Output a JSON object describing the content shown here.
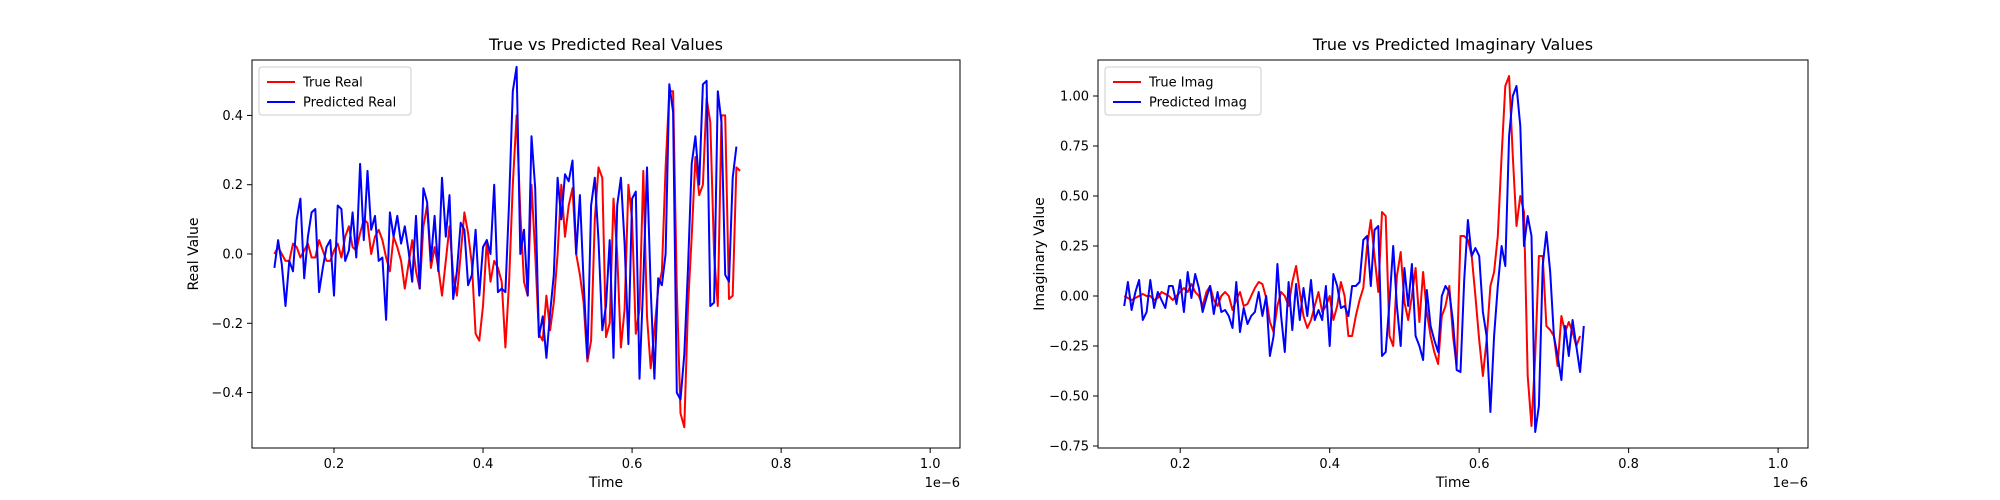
{
  "chart_data": [
    {
      "type": "line",
      "title": "True vs Predicted Real Values",
      "xlabel": "Time",
      "ylabel": "Real Value",
      "x_offset_text": "1e−6",
      "xlim": [
        0.09,
        1.04
      ],
      "ylim": [
        -0.56,
        0.56
      ],
      "xticks": [
        0.2,
        0.4,
        0.6,
        0.8,
        1.0
      ],
      "xtick_labels": [
        "0.2",
        "0.4",
        "0.6",
        "0.8",
        "1.0"
      ],
      "yticks": [
        -0.4,
        -0.2,
        0.0,
        0.2,
        0.4
      ],
      "ytick_labels": [
        "−0.4",
        "−0.2",
        "0.0",
        "0.2",
        "0.4"
      ],
      "grid": false,
      "legend_position": "upper-left",
      "x_start": 0.12,
      "x_step": 0.005,
      "series": [
        {
          "name": "True Real",
          "color": "#ff0000",
          "values": [
            0.0,
            0.02,
            0.0,
            -0.02,
            -0.02,
            0.03,
            0.02,
            -0.01,
            0.01,
            0.03,
            -0.01,
            -0.01,
            0.04,
            0.01,
            -0.02,
            -0.02,
            0.01,
            0.03,
            -0.01,
            0.05,
            0.08,
            0.02,
            0.01,
            0.06,
            0.1,
            0.09,
            0.0,
            0.05,
            0.07,
            0.04,
            -0.01,
            -0.05,
            0.05,
            0.02,
            -0.02,
            -0.1,
            -0.03,
            0.04,
            -0.05,
            -0.1,
            0.08,
            0.14,
            -0.04,
            0.02,
            -0.04,
            -0.12,
            -0.02,
            0.08,
            -0.06,
            -0.12,
            0.0,
            0.12,
            0.06,
            -0.03,
            -0.23,
            -0.25,
            -0.15,
            0.04,
            -0.08,
            -0.02,
            -0.04,
            -0.08,
            -0.27,
            -0.08,
            0.2,
            0.4,
            0.12,
            -0.08,
            -0.12,
            0.2,
            0.0,
            -0.23,
            -0.25,
            -0.12,
            -0.22,
            -0.14,
            0.0,
            0.2,
            0.05,
            0.14,
            0.19,
            0.0,
            -0.06,
            -0.14,
            -0.31,
            -0.25,
            0.1,
            0.25,
            0.22,
            -0.24,
            -0.2,
            0.16,
            0.0,
            -0.27,
            -0.16,
            0.2,
            0.1,
            -0.23,
            -0.16,
            0.24,
            -0.18,
            -0.33,
            -0.22,
            -0.1,
            -0.05,
            0.25,
            0.47,
            0.47,
            -0.1,
            -0.46,
            -0.5,
            -0.15,
            0.05,
            0.28,
            0.17,
            0.2,
            0.45,
            0.38,
            0.0,
            -0.15,
            0.4,
            0.4,
            -0.13,
            -0.12,
            0.25,
            0.24
          ]
        },
        {
          "name": "Predicted Real",
          "color": "#0000ff",
          "values": [
            -0.04,
            0.04,
            -0.03,
            -0.15,
            -0.02,
            -0.05,
            0.1,
            0.16,
            -0.07,
            0.05,
            0.12,
            0.13,
            -0.11,
            -0.04,
            0.02,
            0.04,
            -0.12,
            0.14,
            0.13,
            -0.02,
            0.01,
            0.12,
            -0.01,
            0.26,
            0.04,
            0.24,
            0.07,
            0.11,
            -0.02,
            -0.01,
            -0.19,
            0.12,
            0.05,
            0.11,
            0.03,
            0.08,
            0.01,
            -0.08,
            0.11,
            -0.1,
            0.19,
            0.15,
            -0.02,
            0.11,
            -0.05,
            0.22,
            0.05,
            0.17,
            -0.13,
            -0.05,
            0.09,
            0.07,
            -0.09,
            -0.06,
            0.07,
            -0.12,
            0.02,
            0.04,
            0.0,
            0.2,
            -0.11,
            -0.1,
            -0.11,
            0.15,
            0.47,
            0.54,
            0.0,
            0.07,
            -0.12,
            0.34,
            0.19,
            -0.24,
            -0.18,
            -0.3,
            -0.17,
            -0.06,
            0.22,
            0.1,
            0.23,
            0.21,
            0.27,
            0.0,
            0.17,
            -0.08,
            -0.3,
            0.14,
            0.22,
            0.04,
            -0.22,
            -0.15,
            0.04,
            -0.3,
            0.14,
            0.22,
            0.03,
            -0.26,
            0.16,
            0.18,
            -0.36,
            -0.08,
            0.25,
            -0.1,
            -0.36,
            -0.07,
            -0.09,
            0.0,
            0.49,
            0.41,
            -0.4,
            -0.42,
            -0.29,
            -0.04,
            0.26,
            0.34,
            0.2,
            0.49,
            0.5,
            -0.15,
            -0.14,
            0.47,
            0.38,
            -0.06,
            -0.08,
            0.22,
            0.31
          ]
        }
      ]
    },
    {
      "type": "line",
      "title": "True vs Predicted Imaginary Values",
      "xlabel": "Time",
      "ylabel": "Imaginary Value",
      "x_offset_text": "1e−6",
      "xlim": [
        0.09,
        1.04
      ],
      "ylim": [
        -0.76,
        1.18
      ],
      "xticks": [
        0.2,
        0.4,
        0.6,
        0.8,
        1.0
      ],
      "xtick_labels": [
        "0.2",
        "0.4",
        "0.6",
        "0.8",
        "1.0"
      ],
      "yticks": [
        -0.75,
        -0.5,
        -0.25,
        0.0,
        0.25,
        0.5,
        0.75,
        1.0
      ],
      "ytick_labels": [
        "−0.75",
        "−0.50",
        "−0.25",
        "0.00",
        "0.25",
        "0.50",
        "0.75",
        "1.00"
      ],
      "grid": false,
      "legend_position": "upper-left",
      "x_start": 0.125,
      "x_step": 0.005,
      "series": [
        {
          "name": "True Imag",
          "color": "#ff0000",
          "values": [
            0.0,
            -0.01,
            -0.02,
            -0.01,
            0.0,
            0.01,
            0.0,
            0.0,
            -0.02,
            -0.01,
            0.02,
            0.01,
            0.0,
            -0.02,
            0.0,
            0.02,
            0.04,
            0.02,
            0.06,
            0.02,
            0.0,
            -0.05,
            0.02,
            0.05,
            -0.02,
            -0.05,
            0.0,
            0.02,
            0.0,
            -0.07,
            -0.02,
            0.02,
            -0.05,
            -0.04,
            0.0,
            0.04,
            0.07,
            0.06,
            -0.01,
            -0.13,
            -0.18,
            -0.05,
            0.02,
            0.0,
            -0.05,
            0.07,
            0.15,
            0.02,
            -0.1,
            -0.16,
            -0.12,
            -0.05,
            0.02,
            -0.08,
            -0.05,
            0.0,
            -0.12,
            -0.05,
            0.07,
            0.0,
            -0.2,
            -0.2,
            -0.1,
            -0.02,
            0.04,
            0.25,
            0.38,
            0.2,
            0.02,
            0.42,
            0.4,
            -0.2,
            -0.25,
            0.1,
            0.22,
            -0.03,
            -0.12,
            0.0,
            0.14,
            -0.13,
            0.12,
            -0.08,
            -0.2,
            -0.28,
            -0.34,
            -0.1,
            -0.05,
            0.05,
            -0.2,
            -0.35,
            0.3,
            0.3,
            0.28,
            0.2,
            0.0,
            -0.22,
            -0.4,
            -0.22,
            0.05,
            0.12,
            0.3,
            0.7,
            1.05,
            1.1,
            0.7,
            0.35,
            0.5,
            0.42,
            -0.4,
            -0.65,
            -0.3,
            0.2,
            0.2,
            -0.15,
            -0.17,
            -0.2,
            -0.35,
            -0.1,
            -0.18,
            -0.13,
            -0.18,
            -0.25,
            -0.2
          ]
        },
        {
          "name": "Predicted Imag",
          "color": "#0000ff",
          "values": [
            -0.05,
            0.07,
            -0.07,
            0.02,
            0.08,
            -0.12,
            -0.08,
            0.08,
            -0.06,
            0.02,
            -0.02,
            -0.06,
            0.05,
            0.05,
            -0.04,
            0.08,
            -0.08,
            0.12,
            -0.01,
            0.11,
            0.04,
            -0.08,
            -0.01,
            0.05,
            -0.09,
            0.02,
            -0.08,
            -0.07,
            -0.1,
            -0.16,
            0.07,
            -0.18,
            -0.06,
            -0.14,
            -0.1,
            -0.08,
            0.02,
            -0.1,
            0.0,
            -0.3,
            -0.2,
            0.16,
            -0.1,
            -0.28,
            0.07,
            -0.17,
            0.06,
            -0.12,
            0.04,
            -0.1,
            0.08,
            -0.12,
            -0.07,
            -0.12,
            0.05,
            -0.25,
            0.11,
            0.05,
            -0.06,
            -0.05,
            -0.1,
            0.05,
            0.05,
            0.07,
            0.28,
            0.3,
            0.05,
            0.33,
            0.35,
            -0.3,
            -0.28,
            -0.03,
            0.25,
            -0.05,
            -0.25,
            0.14,
            -0.05,
            0.16,
            -0.2,
            -0.25,
            -0.32,
            0.03,
            -0.15,
            -0.22,
            -0.28,
            0.0,
            0.05,
            0.02,
            -0.13,
            -0.37,
            -0.38,
            0.08,
            0.38,
            0.2,
            0.24,
            0.2,
            -0.08,
            -0.2,
            -0.58,
            -0.2,
            0.05,
            0.25,
            0.15,
            0.8,
            1.0,
            1.05,
            0.85,
            0.25,
            0.4,
            0.3,
            -0.68,
            -0.55,
            0.15,
            0.32,
            0.12,
            -0.2,
            -0.3,
            -0.42,
            -0.15,
            -0.3,
            -0.12,
            -0.25,
            -0.38,
            -0.15
          ]
        }
      ]
    }
  ]
}
